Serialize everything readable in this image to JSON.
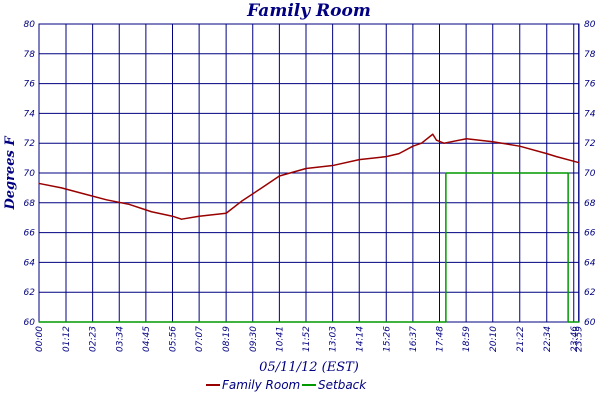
{
  "chart_data": {
    "type": "line",
    "title": "Family Room",
    "xlabel": "05/11/12 (EST)",
    "ylabel": "Degrees F",
    "ylim": [
      60,
      80
    ],
    "xlim_minutes": [
      0,
      1440
    ],
    "grid": true,
    "legend_position": "bottom",
    "y_ticks": [
      "60",
      "62",
      "64",
      "66",
      "68",
      "70",
      "72",
      "74",
      "76",
      "78",
      "80"
    ],
    "x_ticks": [
      "00:00",
      "01:12",
      "02:23",
      "03:34",
      "04:45",
      "05:56",
      "07:07",
      "08:19",
      "09:30",
      "10:41",
      "11:52",
      "13:03",
      "14:14",
      "15:26",
      "16:37",
      "17:48",
      "18:59",
      "20:10",
      "21:22",
      "22:34",
      "23:46",
      "23:59"
    ],
    "series": [
      {
        "name": "Family Room",
        "color": "#990000",
        "x": [
          "00:00",
          "01:00",
          "02:00",
          "03:00",
          "04:00",
          "05:00",
          "05:56",
          "06:20",
          "07:07",
          "08:19",
          "09:00",
          "10:00",
          "10:41",
          "11:52",
          "13:03",
          "14:14",
          "15:26",
          "16:00",
          "16:37",
          "17:00",
          "17:30",
          "17:40",
          "18:00",
          "19:00",
          "20:10",
          "21:22",
          "22:34",
          "23:00",
          "23:59"
        ],
        "values": [
          69.3,
          69.0,
          68.6,
          68.2,
          67.9,
          67.4,
          67.1,
          66.9,
          67.1,
          67.3,
          68.1,
          69.1,
          69.8,
          70.3,
          70.5,
          70.9,
          71.1,
          71.3,
          71.8,
          72.0,
          72.6,
          72.2,
          72.0,
          72.3,
          72.1,
          71.8,
          71.3,
          71.1,
          70.7
        ]
      },
      {
        "name": "Setback",
        "color": "#009900",
        "x": [
          "00:00",
          "18:05",
          "18:05",
          "23:31",
          "23:31",
          "23:59"
        ],
        "values": [
          60,
          60,
          70,
          70,
          60,
          60
        ]
      }
    ]
  }
}
